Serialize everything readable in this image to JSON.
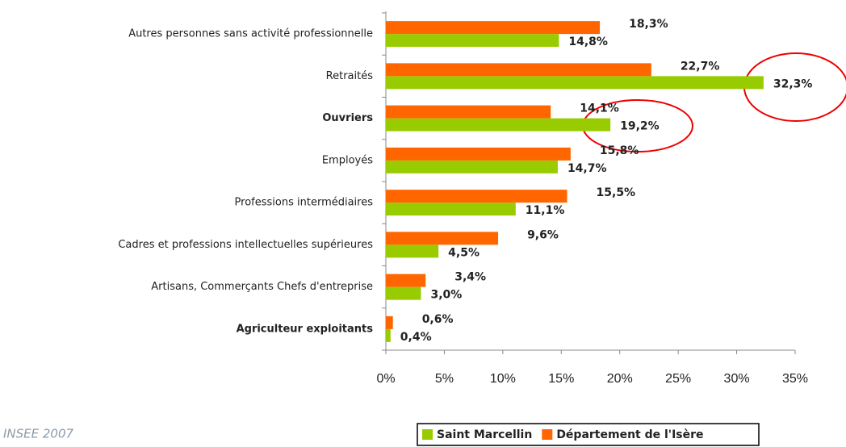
{
  "chart_data": {
    "type": "barh",
    "categories": [
      "Autres personnes sans activité professionnelle",
      "Retraités",
      "Ouvriers",
      "Employés",
      "Professions intermédiaires",
      "Cadres et professions intellectuelles supérieures",
      "Artisans, Commerçants Chefs d'entreprise",
      "Agriculteur exploitants"
    ],
    "series": [
      {
        "name": "Saint Marcellin",
        "color": "#99cc00",
        "values": [
          14.8,
          32.3,
          19.2,
          14.7,
          11.1,
          4.5,
          3.0,
          0.4
        ],
        "value_labels": [
          "14,8%",
          "32,3%",
          "19,2%",
          "14,7%",
          "11,1%",
          "4,5%",
          "3,0%",
          "0,4%"
        ]
      },
      {
        "name": "Département de l'Isère",
        "color": "#ff6600",
        "values": [
          18.3,
          22.7,
          14.1,
          15.8,
          15.5,
          9.6,
          3.4,
          0.6
        ],
        "value_labels": [
          "18,3%",
          "22,7%",
          "14,1%",
          "15,8%",
          "15,5%",
          "9,6%",
          "3,4%",
          "0,6%"
        ]
      }
    ],
    "xlim": [
      0,
      35
    ],
    "xticks": [
      {
        "value": 0,
        "label": "0%"
      },
      {
        "value": 5,
        "label": "5%"
      },
      {
        "value": 10,
        "label": "10%"
      },
      {
        "value": 15,
        "label": "15%"
      },
      {
        "value": 20,
        "label": "20%"
      },
      {
        "value": 25,
        "label": "25%"
      },
      {
        "value": 30,
        "label": "30%"
      },
      {
        "value": 35,
        "label": "35%"
      }
    ],
    "legend": "bottom-right",
    "source": "INSEE 2007"
  }
}
